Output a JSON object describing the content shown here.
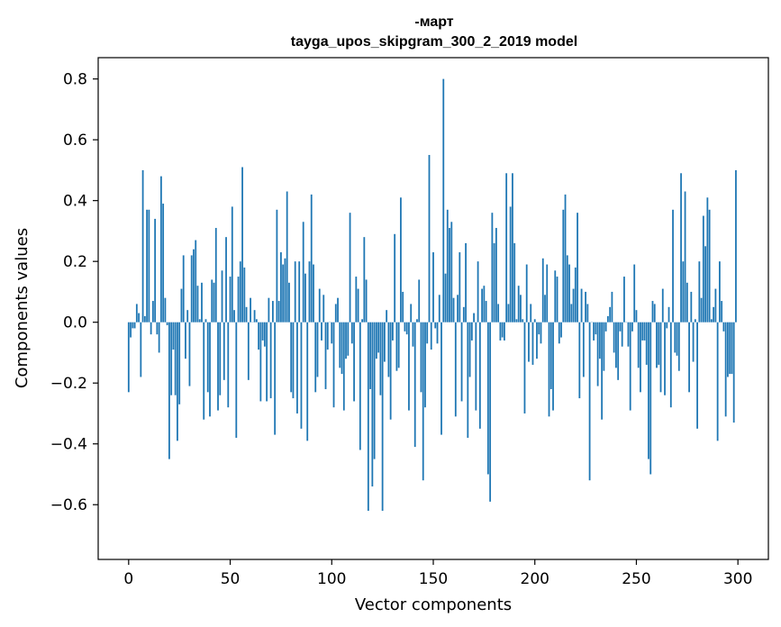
{
  "chart_data": {
    "type": "bar",
    "title_line1": "-март",
    "title_line2": "tayga_upos_skipgram_300_2_2019 model",
    "xlabel": "Vector components",
    "ylabel": "Components values",
    "xlim": [
      -15,
      315
    ],
    "ylim": [
      -0.78,
      0.87
    ],
    "xticks": [
      0,
      50,
      100,
      150,
      200,
      250,
      300
    ],
    "xtick_labels": [
      "0",
      "50",
      "100",
      "150",
      "200",
      "250",
      "300"
    ],
    "yticks": [
      -0.6,
      -0.4,
      -0.2,
      0.0,
      0.2,
      0.4,
      0.6,
      0.8
    ],
    "ytick_labels": [
      "−0.6",
      "−0.4",
      "−0.2",
      "0.0",
      "0.2",
      "0.4",
      "0.6",
      "0.8"
    ],
    "bar_color": "#1f77b4",
    "values": [
      -0.23,
      -0.05,
      -0.02,
      -0.02,
      0.06,
      0.03,
      -0.18,
      0.5,
      0.02,
      0.37,
      0.37,
      -0.04,
      0.07,
      0.34,
      -0.04,
      -0.1,
      0.48,
      0.39,
      0.08,
      -0.01,
      -0.45,
      -0.24,
      -0.09,
      -0.24,
      -0.39,
      -0.27,
      0.11,
      0.22,
      -0.12,
      0.04,
      -0.21,
      0.22,
      0.24,
      0.27,
      0.12,
      0.01,
      0.13,
      -0.32,
      0.01,
      -0.23,
      -0.31,
      0.14,
      0.13,
      0.31,
      -0.29,
      -0.24,
      0.17,
      -0.19,
      0.28,
      -0.28,
      0.15,
      0.38,
      0.04,
      -0.38,
      0.15,
      0.2,
      0.51,
      0.18,
      0.05,
      -0.19,
      0.08,
      0.0,
      0.04,
      0.01,
      -0.09,
      -0.26,
      -0.06,
      -0.08,
      -0.26,
      0.08,
      -0.25,
      0.07,
      -0.37,
      0.37,
      0.07,
      0.23,
      0.19,
      0.21,
      0.43,
      0.13,
      -0.23,
      -0.25,
      0.2,
      -0.3,
      0.2,
      -0.35,
      0.33,
      0.16,
      -0.39,
      0.2,
      0.42,
      0.19,
      -0.23,
      -0.18,
      0.11,
      -0.06,
      0.09,
      -0.22,
      -0.09,
      0.0,
      -0.07,
      -0.28,
      0.06,
      0.08,
      -0.15,
      -0.17,
      -0.29,
      -0.12,
      -0.11,
      0.36,
      -0.07,
      -0.26,
      0.15,
      0.11,
      -0.42,
      0.01,
      0.28,
      0.14,
      -0.62,
      -0.22,
      -0.54,
      -0.45,
      -0.12,
      -0.1,
      -0.24,
      -0.62,
      -0.13,
      0.04,
      -0.18,
      -0.32,
      -0.06,
      0.29,
      -0.16,
      -0.15,
      0.41,
      0.1,
      -0.03,
      -0.04,
      -0.29,
      0.06,
      -0.08,
      -0.41,
      0.01,
      0.14,
      -0.23,
      -0.52,
      -0.28,
      -0.07,
      0.55,
      -0.09,
      0.23,
      -0.02,
      -0.07,
      0.09,
      -0.37,
      0.8,
      0.16,
      0.37,
      0.31,
      0.33,
      0.08,
      -0.31,
      0.09,
      0.23,
      -0.26,
      0.05,
      0.26,
      -0.38,
      -0.18,
      -0.06,
      0.03,
      -0.29,
      0.2,
      -0.35,
      0.11,
      0.12,
      0.07,
      -0.5,
      -0.59,
      0.36,
      0.26,
      0.31,
      0.06,
      -0.06,
      -0.05,
      -0.06,
      0.49,
      0.06,
      0.38,
      0.49,
      0.26,
      0.01,
      0.12,
      0.09,
      0.01,
      -0.3,
      0.19,
      -0.13,
      0.06,
      -0.14,
      0.01,
      -0.12,
      -0.04,
      -0.07,
      0.21,
      0.09,
      0.19,
      -0.31,
      -0.22,
      -0.29,
      0.17,
      0.15,
      -0.07,
      -0.05,
      0.37,
      0.42,
      0.22,
      0.19,
      0.06,
      0.11,
      0.18,
      0.36,
      -0.25,
      0.11,
      -0.18,
      0.1,
      0.06,
      -0.52,
      0.0,
      -0.06,
      -0.04,
      -0.21,
      -0.12,
      -0.32,
      -0.16,
      -0.03,
      0.02,
      0.05,
      0.1,
      -0.1,
      -0.15,
      -0.19,
      -0.03,
      -0.08,
      0.15,
      0.0,
      -0.08,
      -0.29,
      -0.03,
      0.19,
      0.04,
      -0.15,
      -0.23,
      -0.06,
      -0.06,
      -0.14,
      -0.45,
      -0.5,
      0.07,
      0.06,
      -0.15,
      -0.14,
      -0.23,
      0.11,
      -0.24,
      -0.02,
      0.05,
      -0.28,
      0.37,
      -0.1,
      -0.11,
      -0.16,
      0.49,
      0.2,
      0.43,
      0.13,
      -0.23,
      0.1,
      -0.13,
      0.01,
      -0.35,
      0.2,
      0.08,
      0.35,
      0.25,
      0.41,
      0.37,
      0.01,
      0.05,
      0.11,
      -0.39,
      0.2,
      0.07,
      -0.03,
      -0.31,
      -0.18,
      -0.17,
      -0.17,
      -0.33,
      0.5
    ]
  }
}
